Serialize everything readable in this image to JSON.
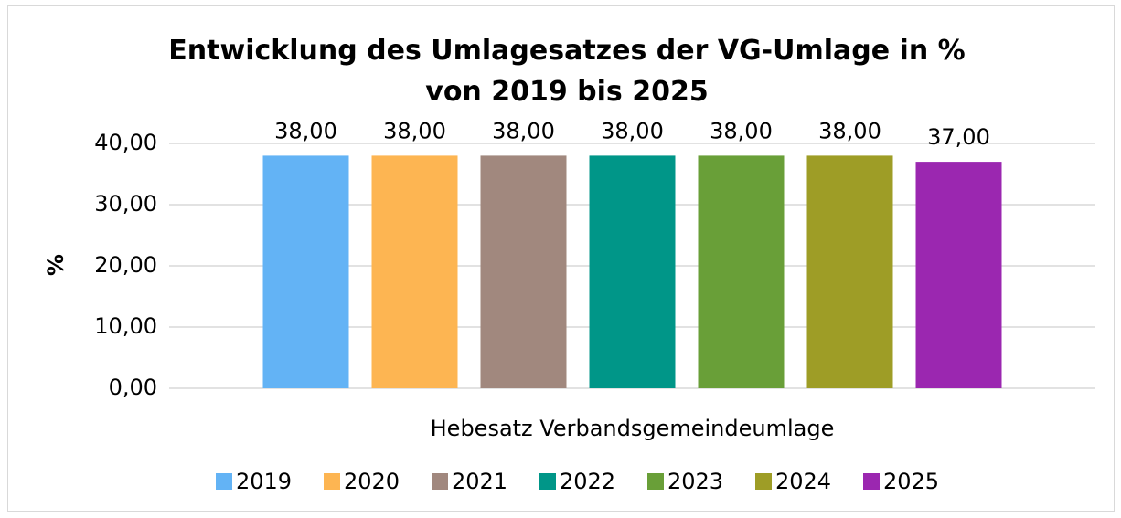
{
  "chart_data": {
    "type": "bar",
    "title": "Entwicklung des Umlagesatzes der VG-Umlage in % von 2019 bis 2025",
    "ylabel": "%",
    "categories": [
      "Hebesatz Verbandsgemeindeumlage"
    ],
    "series": [
      {
        "name": "2019",
        "color": "#63b3f5",
        "values": [
          38
        ],
        "value_labels": [
          "38,00"
        ]
      },
      {
        "name": "2020",
        "color": "#fdb552",
        "values": [
          38
        ],
        "value_labels": [
          "38,00"
        ]
      },
      {
        "name": "2021",
        "color": "#a1887e",
        "values": [
          38
        ],
        "value_labels": [
          "38,00"
        ]
      },
      {
        "name": "2022",
        "color": "#009688",
        "values": [
          38
        ],
        "value_labels": [
          "38,00"
        ]
      },
      {
        "name": "2023",
        "color": "#699f38",
        "values": [
          38
        ],
        "value_labels": [
          "38,00"
        ]
      },
      {
        "name": "2024",
        "color": "#9e9d26",
        "values": [
          38
        ],
        "value_labels": [
          "38,00"
        ]
      },
      {
        "name": "2025",
        "color": "#9b27b0",
        "values": [
          37
        ],
        "value_labels": [
          "37,00"
        ]
      }
    ],
    "ylim": [
      0,
      40
    ],
    "yticks": [
      {
        "value": 0,
        "label": "0,00"
      },
      {
        "value": 10,
        "label": "10,00"
      },
      {
        "value": 20,
        "label": "20,00"
      },
      {
        "value": 30,
        "label": "30,00"
      },
      {
        "value": 40,
        "label": "40,00"
      }
    ],
    "grid": true,
    "legend": "bottom"
  }
}
